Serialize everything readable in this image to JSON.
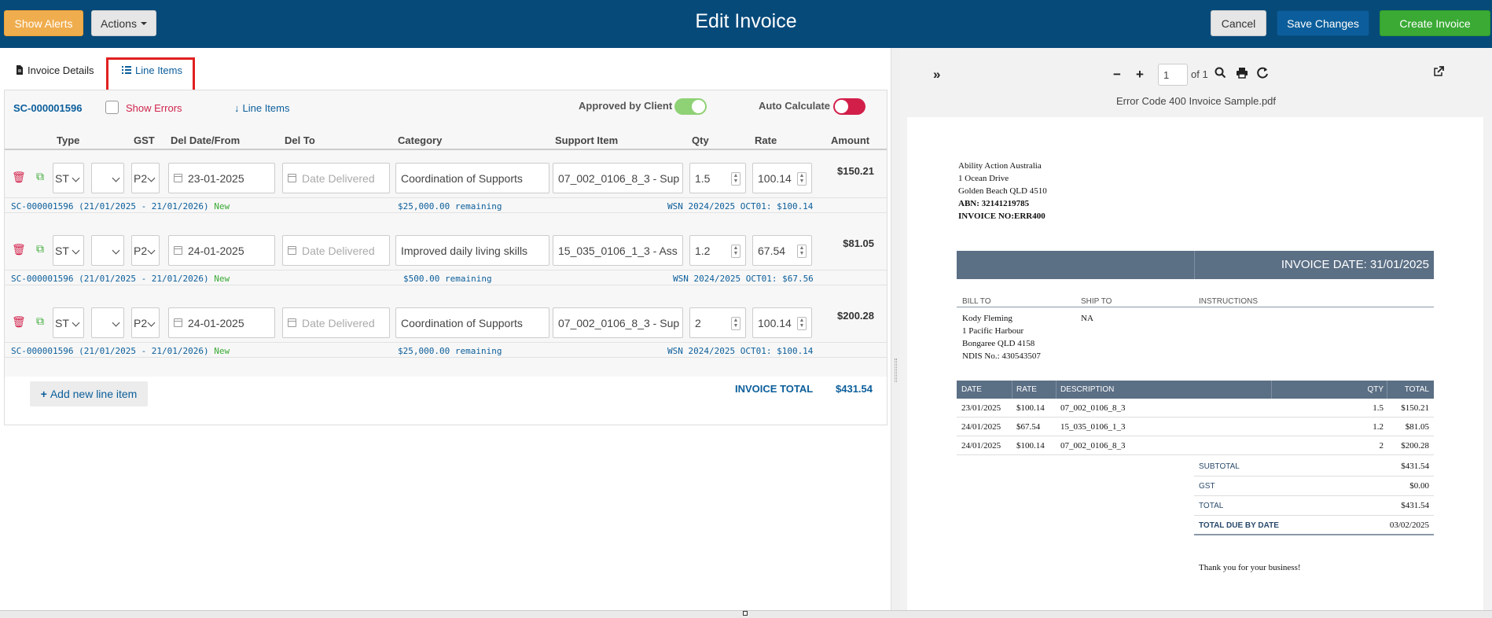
{
  "header": {
    "show_alerts": "Show Alerts",
    "actions": "Actions",
    "title": "Edit Invoice",
    "cancel": "Cancel",
    "save": "Save Changes",
    "create": "Create Invoice"
  },
  "tabs": {
    "details": "Invoice Details",
    "lines": "Line Items"
  },
  "toolbar": {
    "sc_id": "SC-000001596",
    "show_errors": "Show Errors",
    "line_items_link": "Line Items",
    "approved": "Approved by Client",
    "auto_calc": "Auto Calculate"
  },
  "columns": [
    "Type",
    "GST",
    "Del Date/From",
    "Del To",
    "Category",
    "Support Item",
    "Qty",
    "Rate",
    "Amount"
  ],
  "rows": [
    {
      "type": "ST",
      "gst": "",
      "code": "P2",
      "date_from": "23-01-2025",
      "date_to_placeholder": "Date Delivered",
      "category": "Coordination of Supports",
      "support_item": "07_002_0106_8_3 - Sup",
      "qty": "1.5",
      "rate": "100.14",
      "amount": "$150.21",
      "sub_sc": "SC-000001596 (21/01/2025 - 21/01/2026)",
      "sub_status": "New",
      "sub_remaining": "$25,000.00 remaining",
      "sub_wsn": "WSN 2024/2025 OCT01: $100.14"
    },
    {
      "type": "ST",
      "gst": "",
      "code": "P2",
      "date_from": "24-01-2025",
      "date_to_placeholder": "Date Delivered",
      "category": "Improved daily living skills",
      "support_item": "15_035_0106_1_3 - Ass",
      "qty": "1.2",
      "rate": "67.54",
      "amount": "$81.05",
      "sub_sc": "SC-000001596 (21/01/2025 - 21/01/2026)",
      "sub_status": "New",
      "sub_remaining": "$500.00 remaining",
      "sub_wsn": "WSN 2024/2025 OCT01: $67.56"
    },
    {
      "type": "ST",
      "gst": "",
      "code": "P2",
      "date_from": "24-01-2025",
      "date_to_placeholder": "Date Delivered",
      "category": "Coordination of Supports",
      "support_item": "07_002_0106_8_3 - Sup",
      "qty": "2",
      "rate": "100.14",
      "amount": "$200.28",
      "sub_sc": "SC-000001596 (21/01/2025 - 21/01/2026)",
      "sub_status": "New",
      "sub_remaining": "$25,000.00 remaining",
      "sub_wsn": "WSN 2024/2025 OCT01: $100.14"
    }
  ],
  "footer": {
    "add_line": "Add new line item",
    "total_label": "INVOICE TOTAL",
    "total_value": "$431.54"
  },
  "pdf": {
    "page": "1",
    "of": "of 1",
    "filename": "Error Code 400 Invoice Sample.pdf",
    "from": {
      "name": "Ability Action Australia",
      "street": "1 Ocean Drive",
      "city": "Golden Beach QLD 4510",
      "abn": "ABN: 32141219785",
      "invoice_no": "INVOICE NO:ERR400"
    },
    "invoice_date": "INVOICE DATE: 31/01/2025",
    "bill_to_h": "BILL TO",
    "ship_to_h": "SHIP TO",
    "instructions_h": "INSTRUCTIONS",
    "bill_to": [
      "Kody Fleming",
      "1 Pacific Harbour",
      "Bongaree QLD 4158",
      "NDIS No.: 430543507"
    ],
    "ship_to": "NA",
    "table_head": [
      "DATE",
      "RATE",
      "DESCRIPTION",
      "QTY",
      "TOTAL"
    ],
    "lines": [
      {
        "date": "23/01/2025",
        "rate": "$100.14",
        "desc": "07_002_0106_8_3",
        "qty": "1.5",
        "total": "$150.21"
      },
      {
        "date": "24/01/2025",
        "rate": "$67.54",
        "desc": "15_035_0106_1_3",
        "qty": "1.2",
        "total": "$81.05"
      },
      {
        "date": "24/01/2025",
        "rate": "$100.14",
        "desc": "07_002_0106_8_3",
        "qty": "2",
        "total": "$200.28"
      }
    ],
    "totals": [
      {
        "label": "SUBTOTAL",
        "value": "$431.54"
      },
      {
        "label": "GST",
        "value": "$0.00"
      },
      {
        "label": "TOTAL",
        "value": "$431.54"
      },
      {
        "label": "TOTAL DUE BY DATE",
        "value": "03/02/2025"
      }
    ],
    "thanks": "Thank you for your business!"
  },
  "colors": {
    "header_bg": "#064a7a",
    "alerts": "#f0ad4e",
    "save": "#0b5e9b",
    "create": "#3aaa35",
    "error_red": "#d21f4a",
    "pdf_band": "#5b6f85"
  }
}
